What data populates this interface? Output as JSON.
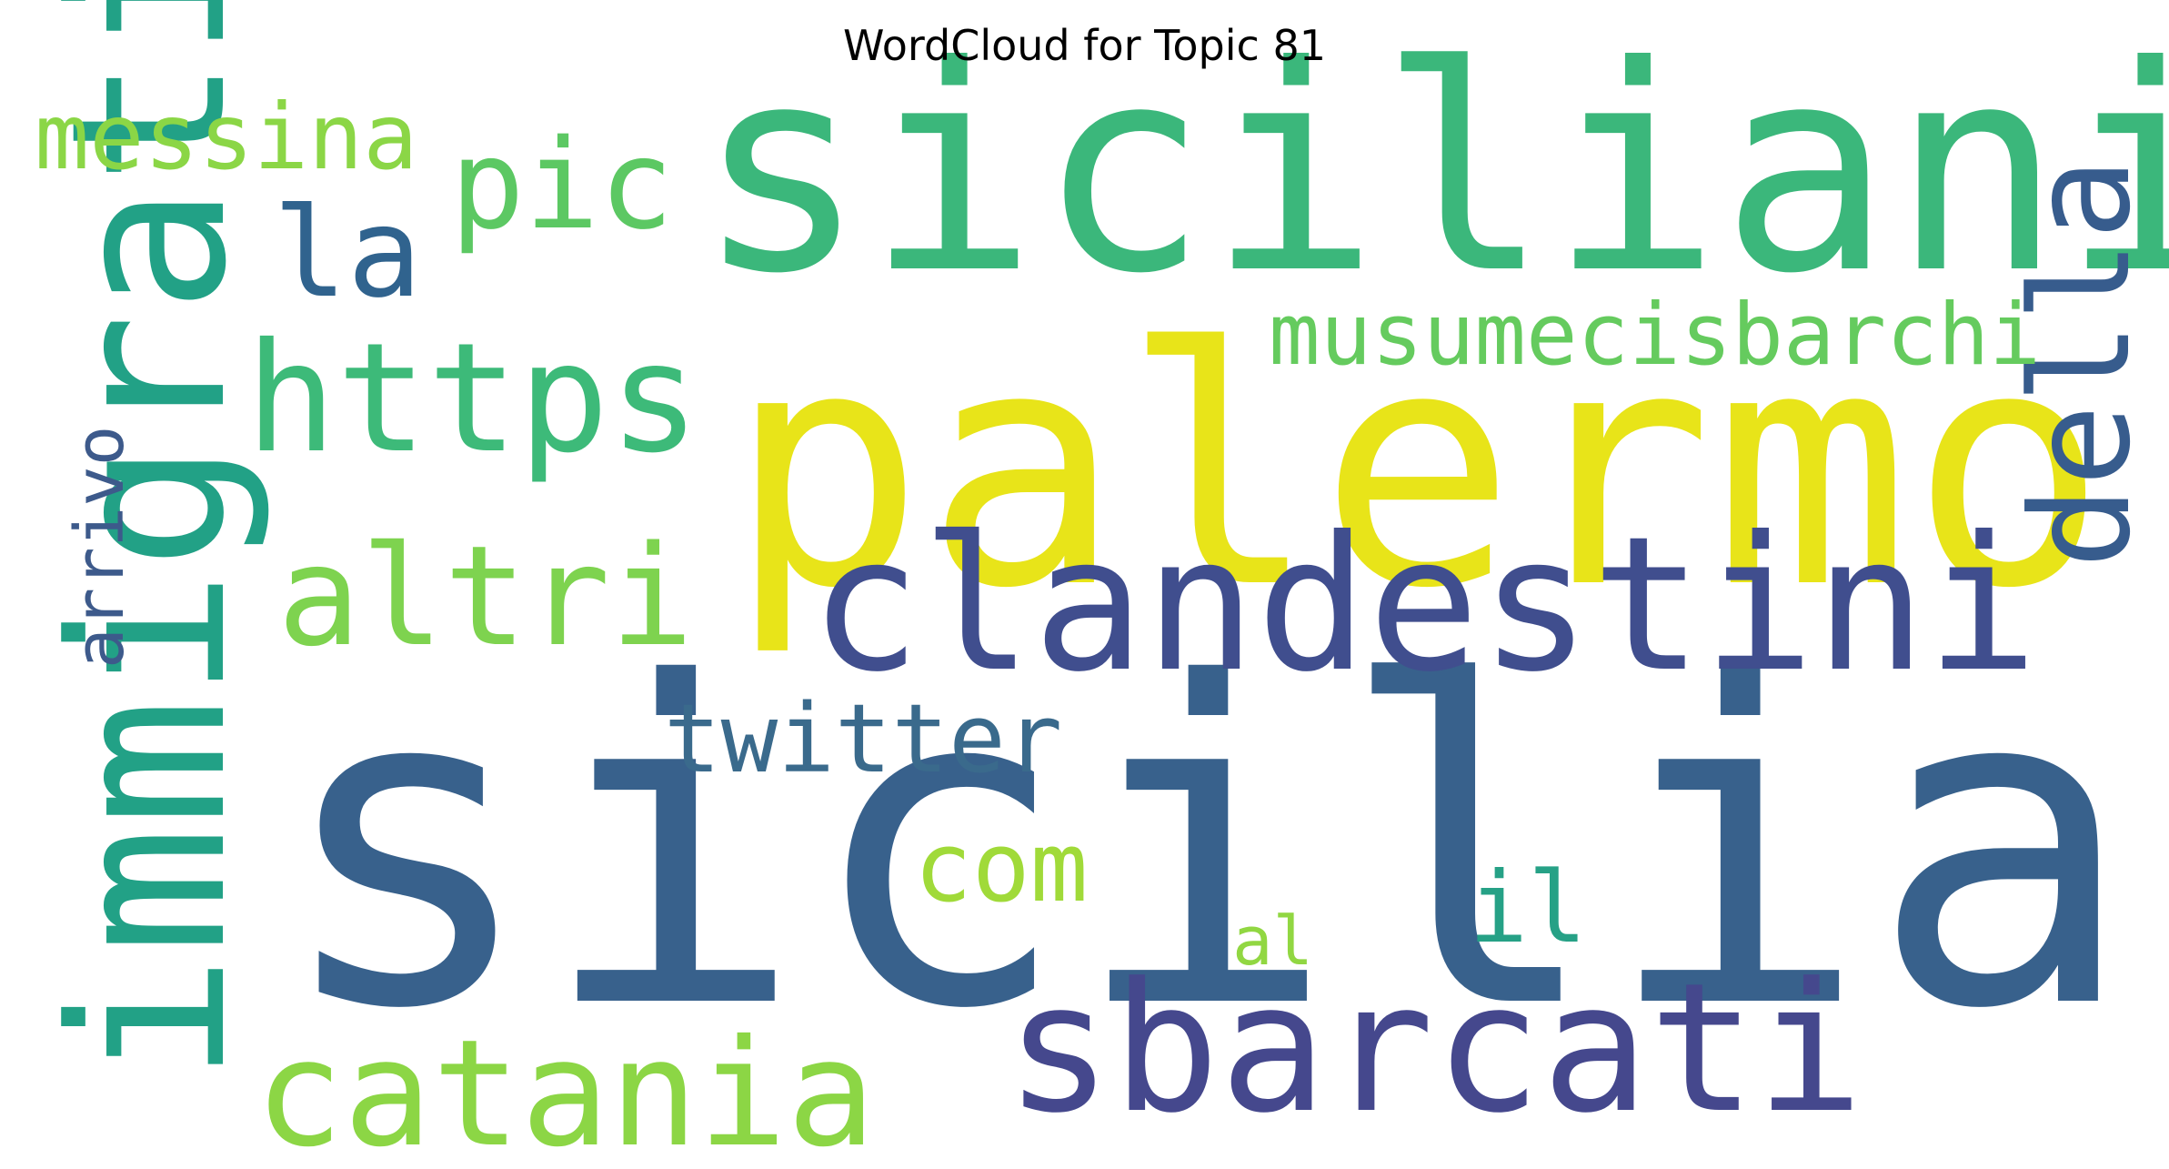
{
  "chart_data": {
    "type": "wordcloud",
    "title": "WordCloud for Topic 81",
    "colormap": "viridis",
    "background": "#ffffff",
    "words": [
      {
        "text": "sicilia",
        "weight": 1.0,
        "color": "#38618C",
        "orientation": "horizontal"
      },
      {
        "text": "palermo",
        "weight": 0.74,
        "color": "#E8E419",
        "orientation": "horizontal"
      },
      {
        "text": "siciliani",
        "weight": 0.64,
        "color": "#3BB77B",
        "orientation": "horizontal"
      },
      {
        "text": "immigrati",
        "weight": 0.48,
        "color": "#22A186",
        "orientation": "vertical"
      },
      {
        "text": "clandestini",
        "weight": 0.42,
        "color": "#404E8E",
        "orientation": "horizontal"
      },
      {
        "text": "sbarcati",
        "weight": 0.4,
        "color": "#45488D",
        "orientation": "horizontal"
      },
      {
        "text": "https",
        "weight": 0.34,
        "color": "#3DBA79",
        "orientation": "horizontal"
      },
      {
        "text": "catania",
        "weight": 0.33,
        "color": "#8CD645",
        "orientation": "horizontal"
      },
      {
        "text": "altri",
        "weight": 0.31,
        "color": "#7ED34F",
        "orientation": "horizontal"
      },
      {
        "text": "della",
        "weight": 0.31,
        "color": "#375C8D",
        "orientation": "vertical"
      },
      {
        "text": "la",
        "weight": 0.28,
        "color": "#30638E",
        "orientation": "horizontal"
      },
      {
        "text": "pic",
        "weight": 0.28,
        "color": "#5CC863",
        "orientation": "horizontal"
      },
      {
        "text": "il",
        "weight": 0.22,
        "color": "#26A186",
        "orientation": "horizontal"
      },
      {
        "text": "com",
        "weight": 0.22,
        "color": "#A0DA39",
        "orientation": "horizontal"
      },
      {
        "text": "twitter",
        "weight": 0.21,
        "color": "#3A6A8C",
        "orientation": "horizontal"
      },
      {
        "text": "messina",
        "weight": 0.2,
        "color": "#8BD646",
        "orientation": "horizontal"
      },
      {
        "text": "musumecisbarchi",
        "weight": 0.19,
        "color": "#65CB5E",
        "orientation": "horizontal"
      },
      {
        "text": "arrivo",
        "weight": 0.15,
        "color": "#3D5A8B",
        "orientation": "vertical"
      },
      {
        "text": "al",
        "weight": 0.15,
        "color": "#91D742",
        "orientation": "horizontal"
      }
    ]
  }
}
